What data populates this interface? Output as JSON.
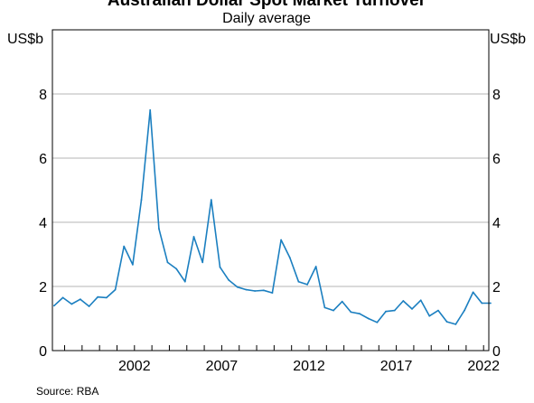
{
  "chart_data": {
    "type": "line",
    "title": "Australian Dollar Spot Market Turnover",
    "subtitle": "Daily average",
    "ylabel_left": "US$b",
    "ylabel_right": "US$b",
    "ylim": [
      0,
      10
    ],
    "yticks": [
      0,
      2,
      4,
      6,
      8
    ],
    "xlim": [
      1997.3,
      2022.3
    ],
    "xticks": [
      2002,
      2007,
      2012,
      2017,
      2022
    ],
    "grid": true,
    "source": "Source:  RBA",
    "series": [
      {
        "color": "#1b7fc0",
        "x": [
          1997.4,
          1997.9,
          1998.4,
          1998.9,
          1999.4,
          1999.9,
          2000.4,
          2000.9,
          2001.4,
          2001.9,
          2002.4,
          2002.9,
          2003.4,
          2003.9,
          2004.4,
          2004.9,
          2005.4,
          2005.9,
          2006.4,
          2006.9,
          2007.4,
          2007.9,
          2008.4,
          2008.9,
          2009.4,
          2009.9,
          2010.4,
          2010.9,
          2011.4,
          2011.9,
          2012.4,
          2012.9,
          2013.4,
          2013.9,
          2014.4,
          2014.9,
          2015.4,
          2015.9,
          2016.4,
          2016.9,
          2017.4,
          2017.9,
          2018.4,
          2018.9,
          2019.4,
          2019.9,
          2020.4,
          2020.9,
          2021.4,
          2021.9,
          2022.4
        ],
        "y": [
          1.4,
          1.65,
          1.45,
          1.6,
          1.38,
          1.67,
          1.65,
          1.9,
          3.25,
          2.68,
          4.7,
          7.5,
          3.8,
          2.75,
          2.55,
          2.15,
          3.55,
          2.75,
          4.7,
          2.6,
          2.2,
          1.98,
          1.9,
          1.86,
          1.88,
          1.8,
          3.45,
          2.9,
          2.15,
          2.06,
          2.62,
          1.34,
          1.25,
          1.53,
          1.2,
          1.15,
          1.0,
          0.88,
          1.22,
          1.25,
          1.55,
          1.3,
          1.57,
          1.08,
          1.25,
          0.9,
          0.82,
          1.25,
          1.82,
          1.48,
          1.48
        ]
      }
    ]
  }
}
